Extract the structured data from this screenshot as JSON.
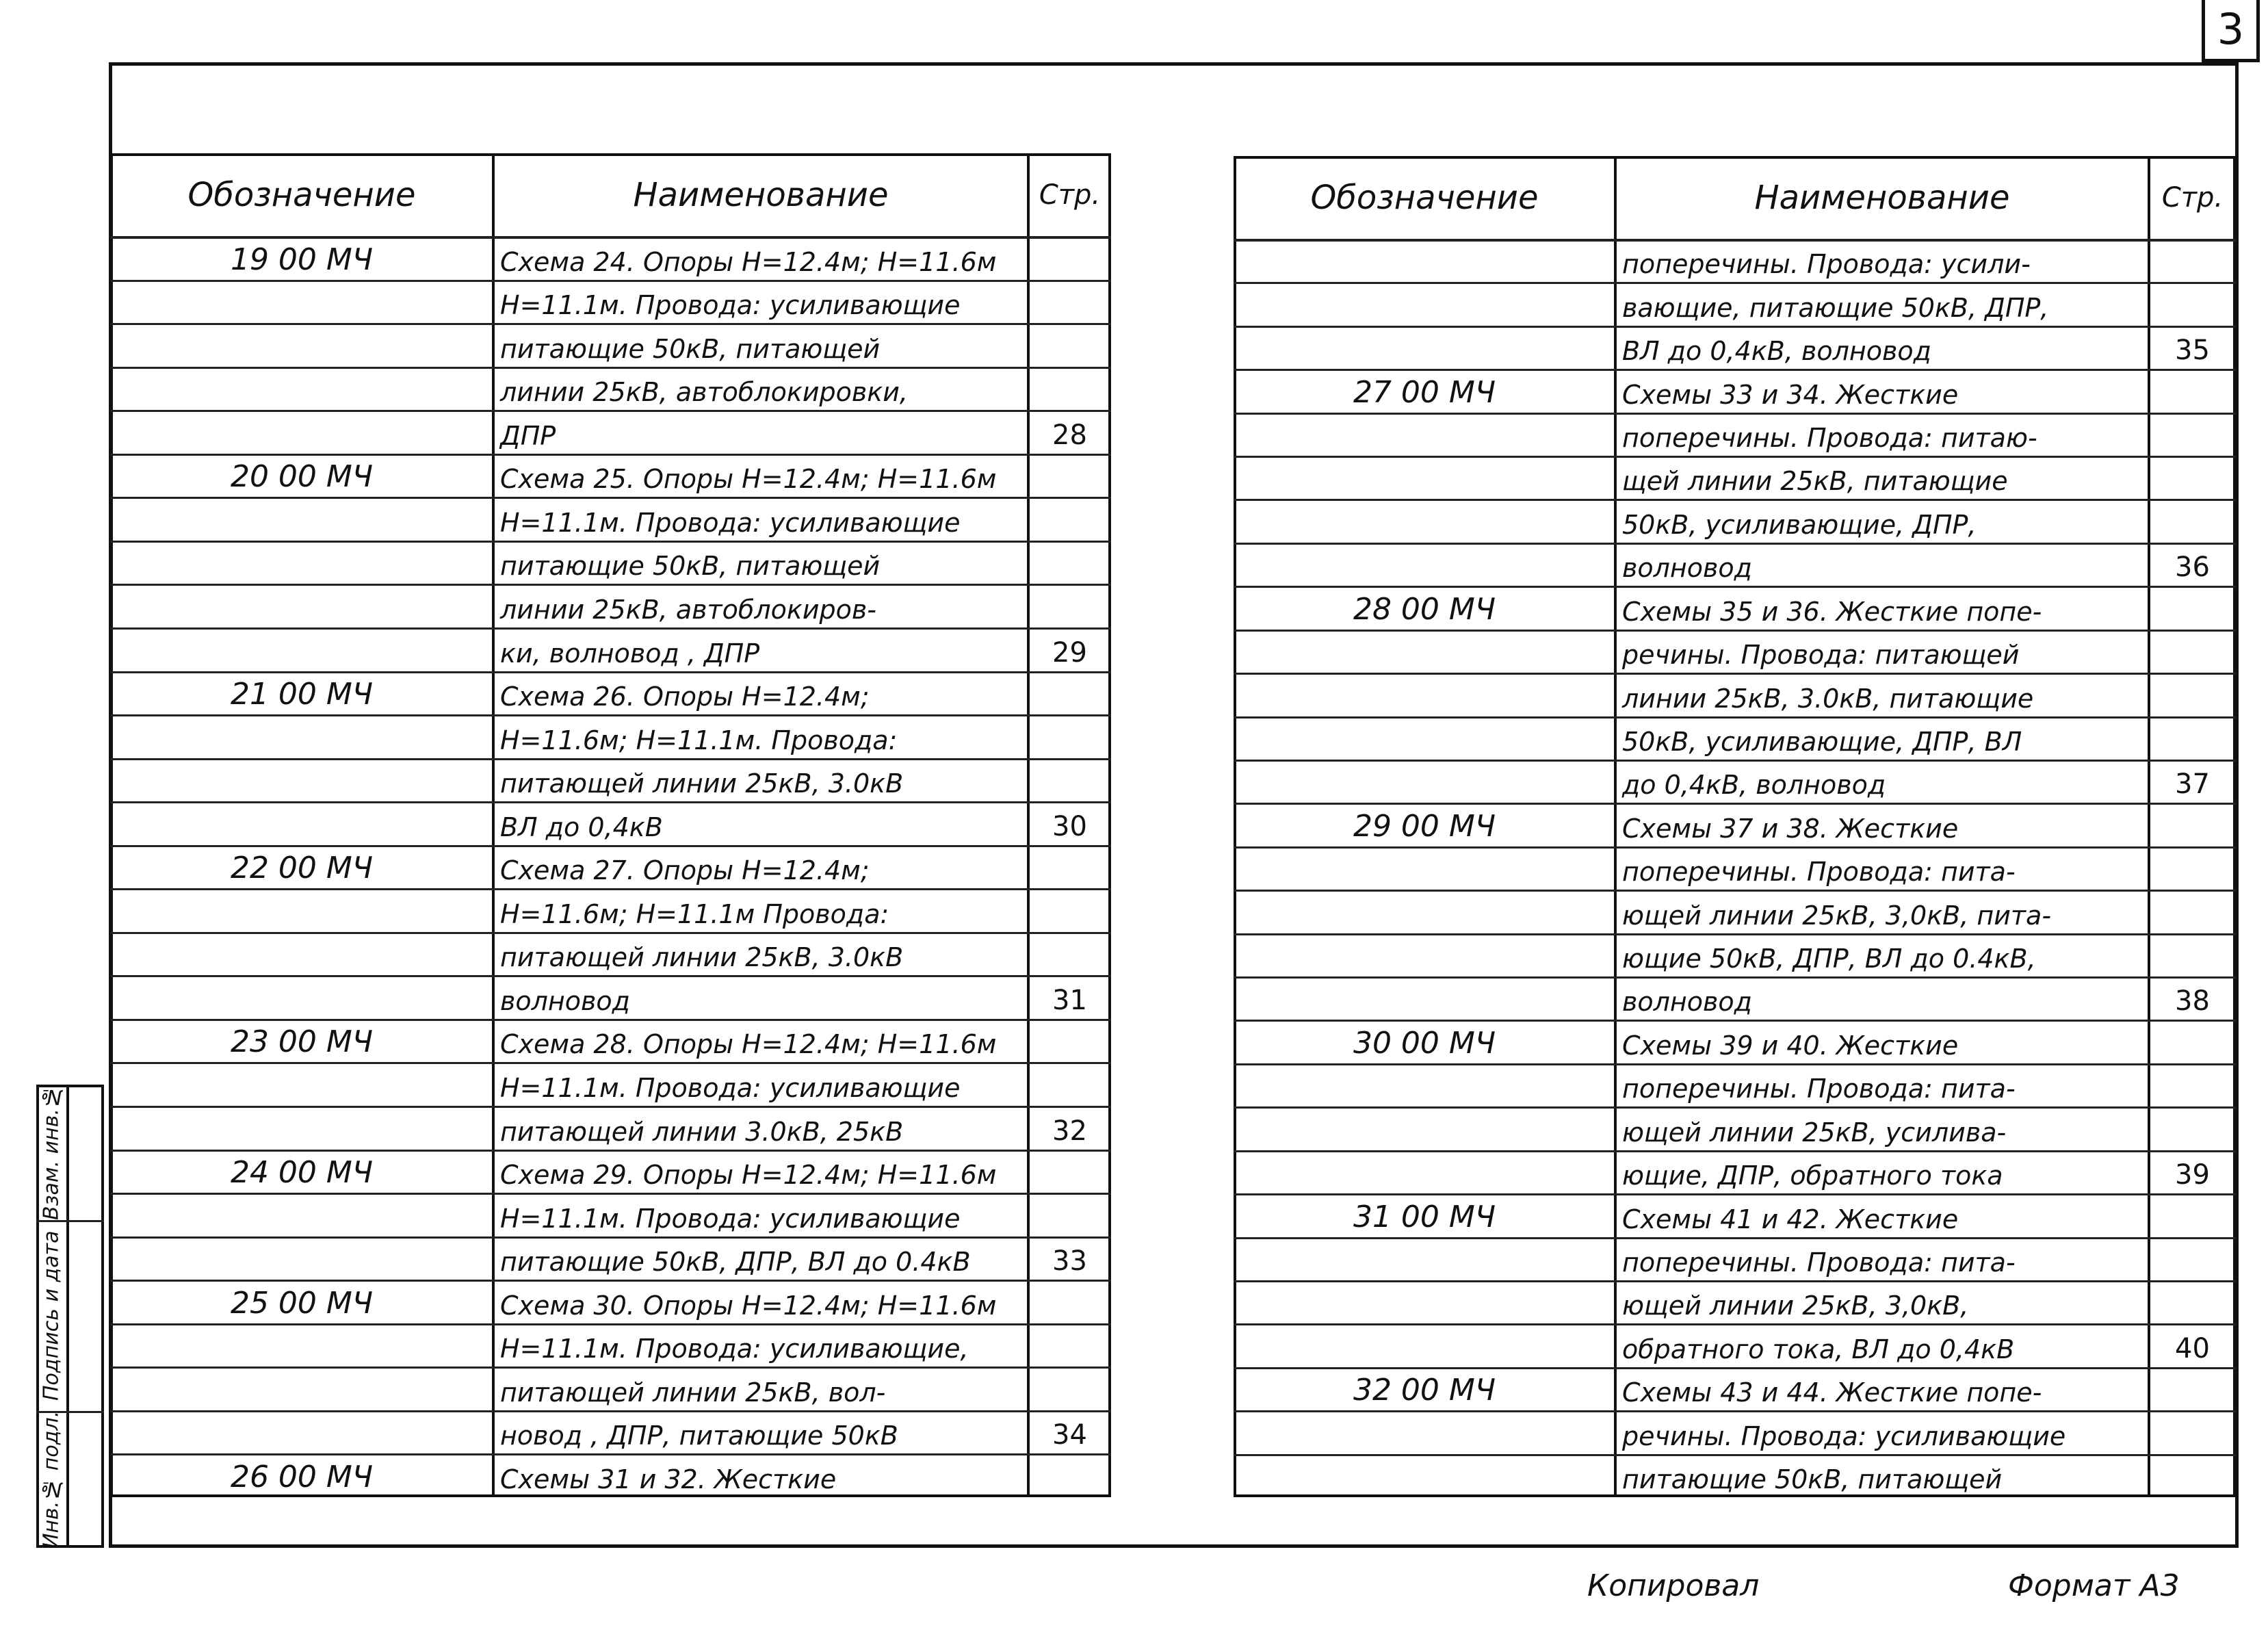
{
  "page_number": "3",
  "stamp": [
    "Взам. инв.№",
    "Подпись и дата",
    "Инв.№ подл."
  ],
  "tables": [
    {
      "columns": [
        "Обозначение",
        "Наименование",
        "Стр."
      ],
      "rows": [
        {
          "code": "19 00 МЧ",
          "name": "Схема 24. Опоры Н=12.4м; Н=11.6м"
        },
        {
          "name": "Н=11.1м. Провода: усиливающие"
        },
        {
          "name": "питающие 50кВ, питающей"
        },
        {
          "name": "линии 25кВ, автоблокировки,"
        },
        {
          "name": "ДПР",
          "page": "28"
        },
        {
          "code": "20 00 МЧ",
          "name": "Схема 25. Опоры Н=12.4м; Н=11.6м"
        },
        {
          "name": "Н=11.1м. Провода: усиливающие"
        },
        {
          "name": "питающие 50кВ, питающей"
        },
        {
          "name": "линии 25кВ, автоблокиров-"
        },
        {
          "name": "ки, волновод , ДПР",
          "page": "29"
        },
        {
          "code": "21 00 МЧ",
          "name": "Схема 26. Опоры Н=12.4м;"
        },
        {
          "name": "Н=11.6м; Н=11.1м. Провода:"
        },
        {
          "name": "питающей линии 25кВ, 3.0кВ"
        },
        {
          "name": "ВЛ до 0,4кВ",
          "page": "30"
        },
        {
          "code": "22 00 МЧ",
          "name": "Схема 27. Опоры Н=12.4м;"
        },
        {
          "name": "Н=11.6м; Н=11.1м  Провода:"
        },
        {
          "name": "питающей линии 25кВ, 3.0кВ"
        },
        {
          "name": "волновод",
          "page": "31"
        },
        {
          "code": "23 00 МЧ",
          "name": "Схема 28. Опоры Н=12.4м; Н=11.6м"
        },
        {
          "name": "Н=11.1м. Провода: усиливающие"
        },
        {
          "name": "питающей линии 3.0кВ, 25кВ",
          "page": "32"
        },
        {
          "code": "24 00 МЧ",
          "name": "Схема 29. Опоры Н=12.4м; Н=11.6м"
        },
        {
          "name": "Н=11.1м. Провода: усиливающие"
        },
        {
          "name": "питающие 50кВ, ДПР, ВЛ до 0.4кВ",
          "page": "33"
        },
        {
          "code": "25 00 МЧ",
          "name": "Схема 30. Опоры Н=12.4м; Н=11.6м"
        },
        {
          "name": "Н=11.1м. Провода: усиливающие,"
        },
        {
          "name": "питающей линии 25кВ, вол-"
        },
        {
          "name": "новод , ДПР, питающие 50кВ",
          "page": "34"
        },
        {
          "code": "26 00 МЧ",
          "name": "Схемы 31 и 32. Жесткие"
        }
      ]
    },
    {
      "columns": [
        "Обозначение",
        "Наименование",
        "Стр."
      ],
      "rows": [
        {
          "name": "поперечины. Провода: усили-"
        },
        {
          "name": "вающие, питающие 50кВ, ДПР,"
        },
        {
          "name": "ВЛ до 0,4кВ, волновод",
          "page": "35"
        },
        {
          "code": "27 00 МЧ",
          "name": "Схемы 33 и 34. Жесткие"
        },
        {
          "name": "поперечины. Провода: питаю-"
        },
        {
          "name": "щей линии 25кВ, питающие"
        },
        {
          "name": "50кВ, усиливающие, ДПР,"
        },
        {
          "name": "волновод",
          "page": "36"
        },
        {
          "code": "28 00 МЧ",
          "name": "Схемы 35 и 36. Жесткие попе-"
        },
        {
          "name": "речины. Провода: питающей"
        },
        {
          "name": "линии 25кВ, 3.0кВ, питающие"
        },
        {
          "name": "50кВ, усиливающие, ДПР, ВЛ"
        },
        {
          "name": "до 0,4кВ, волновод",
          "page": "37"
        },
        {
          "code": "29 00 МЧ",
          "name": "Схемы 37 и 38. Жесткие"
        },
        {
          "name": "поперечины. Провода: пита-"
        },
        {
          "name": "ющей линии 25кВ, 3,0кВ, пита-"
        },
        {
          "name": "ющие 50кВ, ДПР, ВЛ до 0.4кВ,"
        },
        {
          "name": "волновод",
          "page": "38"
        },
        {
          "code": "30 00 МЧ",
          "name": "Схемы 39 и 40. Жесткие"
        },
        {
          "name": "поперечины. Провода: пита-"
        },
        {
          "name": "ющей линии 25кВ, усилива-"
        },
        {
          "name": "ющие, ДПР, обратного тока",
          "page": "39"
        },
        {
          "code": "31 00 МЧ",
          "name": "Схемы 41 и 42. Жесткие"
        },
        {
          "name": "поперечины. Провода: пита-"
        },
        {
          "name": "ющей линии 25кВ, 3,0кВ,"
        },
        {
          "name": "обратного тока, ВЛ до 0,4кВ",
          "page": "40"
        },
        {
          "code": "32 00 МЧ",
          "name": "Схемы 43 и 44. Жесткие попе-"
        },
        {
          "name": "речины. Провода: усиливающие"
        },
        {
          "name": "питающие 50кВ, питающей"
        }
      ]
    }
  ],
  "footer": {
    "copied": "Копировал",
    "format": "Формат А3"
  }
}
